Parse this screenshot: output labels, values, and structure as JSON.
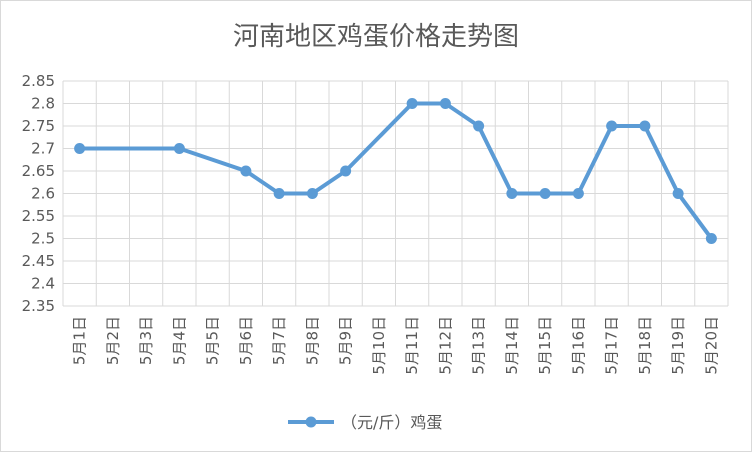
{
  "chart_data": {
    "type": "line",
    "title": "河南地区鸡蛋价格走势图",
    "xlabel": "",
    "ylabel": "",
    "categories": [
      "5月1日",
      "5月2日",
      "5月3日",
      "5月4日",
      "5月5日",
      "5月6日",
      "5月7日",
      "5月8日",
      "5月9日",
      "5月10日",
      "5月11日",
      "5月12日",
      "5月13日",
      "5月14日",
      "5月15日",
      "5月16日",
      "5月17日",
      "5月18日",
      "5月19日",
      "5月20日"
    ],
    "ylim": [
      2.35,
      2.85
    ],
    "yticks": [
      "2.35",
      "2.4",
      "2.45",
      "2.5",
      "2.55",
      "2.6",
      "2.65",
      "2.7",
      "2.75",
      "2.8",
      "2.85"
    ],
    "grid": true,
    "legend_position": "bottom",
    "series": [
      {
        "name": "（元/斤）鸡蛋",
        "color": "#5b9bd5",
        "values": [
          2.7,
          null,
          null,
          2.7,
          null,
          2.65,
          2.6,
          2.6,
          2.65,
          null,
          2.8,
          2.8,
          2.75,
          2.6,
          2.6,
          2.6,
          2.75,
          2.75,
          2.6,
          2.5
        ]
      }
    ]
  }
}
